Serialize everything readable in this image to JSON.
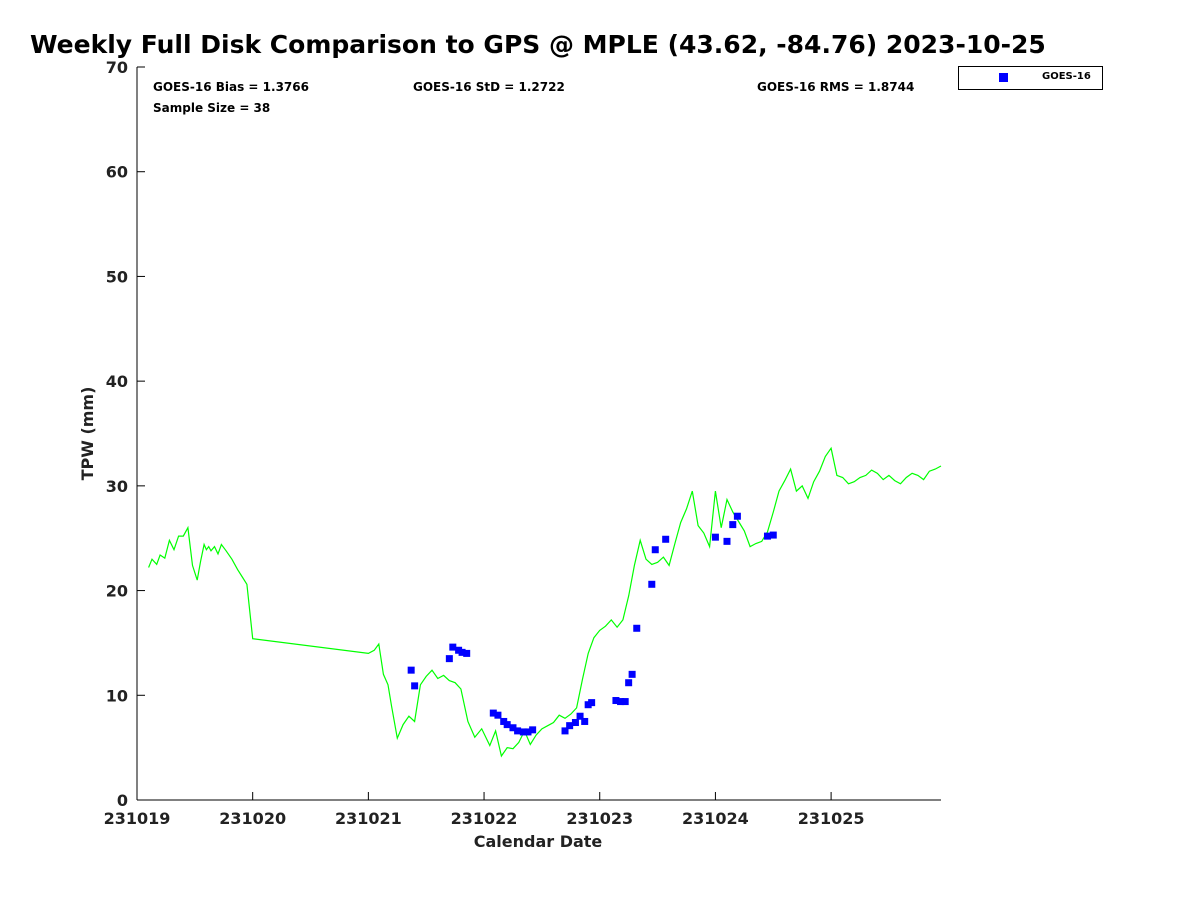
{
  "title": "Weekly Full Disk Comparison to GPS @ MPLE (43.62, -84.76) 2023-10-25",
  "stats": {
    "bias": "GOES-16 Bias = 1.3766",
    "std": "GOES-16 StD = 1.2722",
    "rms": "GOES-16 RMS = 1.8744",
    "sample_size": "Sample Size = 38"
  },
  "legend": {
    "label": "GOES-16",
    "marker_color": "#0000ff"
  },
  "colors": {
    "gps_line": "#00ff00",
    "goes_marker": "#0000ff",
    "axis": "#000000"
  },
  "chart_data": {
    "type": "line+scatter",
    "title": "Weekly Full Disk Comparison to GPS @ MPLE (43.62, -84.76) 2023-10-25",
    "xlabel": "Calendar Date",
    "ylabel": "TPW (mm)",
    "xlim": [
      0,
      6.95
    ],
    "ylim": [
      0,
      70
    ],
    "x_ticks": [
      0,
      1,
      2,
      3,
      4,
      5,
      6
    ],
    "x_tick_labels": [
      "231019",
      "231020",
      "231021",
      "231022",
      "231023",
      "231024",
      "231025"
    ],
    "y_ticks": [
      0,
      10,
      20,
      30,
      40,
      50,
      60,
      70
    ],
    "y_tick_labels": [
      "0",
      "10",
      "20",
      "30",
      "40",
      "50",
      "60",
      "70"
    ],
    "grid": false,
    "legend_position": "top-right outside",
    "series": [
      {
        "name": "GPS",
        "kind": "line",
        "x": [
          0.1,
          0.13,
          0.17,
          0.2,
          0.24,
          0.28,
          0.32,
          0.36,
          0.4,
          0.44,
          0.48,
          0.52,
          0.55,
          0.58,
          0.6,
          0.62,
          0.64,
          0.67,
          0.7,
          0.73,
          0.77,
          0.82,
          0.87,
          0.91,
          0.95,
          1.0,
          2.0,
          2.05,
          2.09,
          2.13,
          2.17,
          2.2,
          2.25,
          2.3,
          2.35,
          2.4,
          2.45,
          2.5,
          2.55,
          2.6,
          2.65,
          2.7,
          2.75,
          2.8,
          2.86,
          2.92,
          2.98,
          3.05,
          3.1,
          3.15,
          3.2,
          3.25,
          3.3,
          3.35,
          3.4,
          3.45,
          3.5,
          3.55,
          3.6,
          3.65,
          3.7,
          3.75,
          3.8,
          3.85,
          3.9,
          3.95,
          4.0,
          4.05,
          4.1,
          4.15,
          4.2,
          4.25,
          4.3,
          4.35,
          4.4,
          4.45,
          4.5,
          4.55,
          4.6,
          4.65,
          4.7,
          4.75,
          4.8,
          4.85,
          4.9,
          4.95,
          5.0,
          5.05,
          5.1,
          5.15,
          5.2,
          5.25,
          5.3,
          5.35,
          5.4,
          5.45,
          5.5,
          5.55,
          5.6,
          5.65,
          5.7,
          5.75,
          5.8,
          5.85,
          5.9,
          5.95,
          6.0,
          6.05,
          6.1,
          6.15,
          6.2,
          6.25,
          6.3,
          6.35,
          6.4,
          6.45,
          6.5,
          6.55,
          6.6,
          6.65,
          6.7,
          6.75,
          6.8,
          6.85,
          6.9,
          6.95
        ],
        "y": [
          22.2,
          23.0,
          22.5,
          23.4,
          23.1,
          24.8,
          23.9,
          25.2,
          25.2,
          26.0,
          22.4,
          21.0,
          22.8,
          24.4,
          23.9,
          24.2,
          23.8,
          24.2,
          23.5,
          24.4,
          23.8,
          23.0,
          22.0,
          21.3,
          20.6,
          15.4,
          14.0,
          14.3,
          14.9,
          12.0,
          11.0,
          9.0,
          5.9,
          7.2,
          8.0,
          7.5,
          11.0,
          11.8,
          12.4,
          11.6,
          11.9,
          11.4,
          11.2,
          10.6,
          7.5,
          6.0,
          6.8,
          5.2,
          6.6,
          4.2,
          5.0,
          4.9,
          5.5,
          6.6,
          5.3,
          6.2,
          6.8,
          7.1,
          7.4,
          8.1,
          7.8,
          8.2,
          8.8,
          11.5,
          14.0,
          15.5,
          16.2,
          16.6,
          17.2,
          16.5,
          17.2,
          19.5,
          22.4,
          24.8,
          23.0,
          22.5,
          22.7,
          23.2,
          22.4,
          24.5,
          26.5,
          27.8,
          29.5,
          26.2,
          25.5,
          24.2,
          29.5,
          26.0,
          28.7,
          27.5,
          26.6,
          25.7,
          24.2,
          24.5,
          24.7,
          25.6,
          27.5,
          29.5,
          30.5,
          31.6,
          29.5,
          30.0,
          28.8,
          30.4,
          31.4,
          32.8,
          33.6,
          31.0,
          30.8,
          30.2,
          30.4,
          30.8,
          31.0,
          31.5,
          31.2,
          30.6,
          31.0,
          30.5,
          30.2,
          30.8,
          31.2,
          31.0,
          30.6,
          31.4,
          31.6,
          31.9
        ]
      },
      {
        "name": "GOES-16",
        "kind": "scatter",
        "x": [
          2.37,
          2.4,
          2.7,
          2.73,
          2.78,
          2.81,
          2.85,
          3.08,
          3.12,
          3.17,
          3.2,
          3.25,
          3.29,
          3.34,
          3.38,
          3.42,
          3.7,
          3.74,
          3.79,
          3.83,
          3.87,
          3.9,
          3.93,
          4.14,
          4.18,
          4.22,
          4.25,
          4.28,
          4.32,
          4.45,
          4.48,
          4.57,
          5.0,
          5.1,
          5.15,
          5.19,
          5.45,
          5.5
        ],
        "y": [
          12.4,
          10.9,
          13.5,
          14.6,
          14.3,
          14.1,
          14.0,
          8.3,
          8.1,
          7.5,
          7.2,
          6.9,
          6.6,
          6.5,
          6.5,
          6.7,
          6.6,
          7.1,
          7.4,
          8.0,
          7.5,
          9.1,
          9.3,
          9.5,
          9.4,
          9.4,
          11.2,
          12.0,
          16.4,
          20.6,
          23.9,
          24.9,
          25.1,
          24.7,
          26.3,
          27.1,
          25.2,
          25.3
        ]
      }
    ]
  }
}
